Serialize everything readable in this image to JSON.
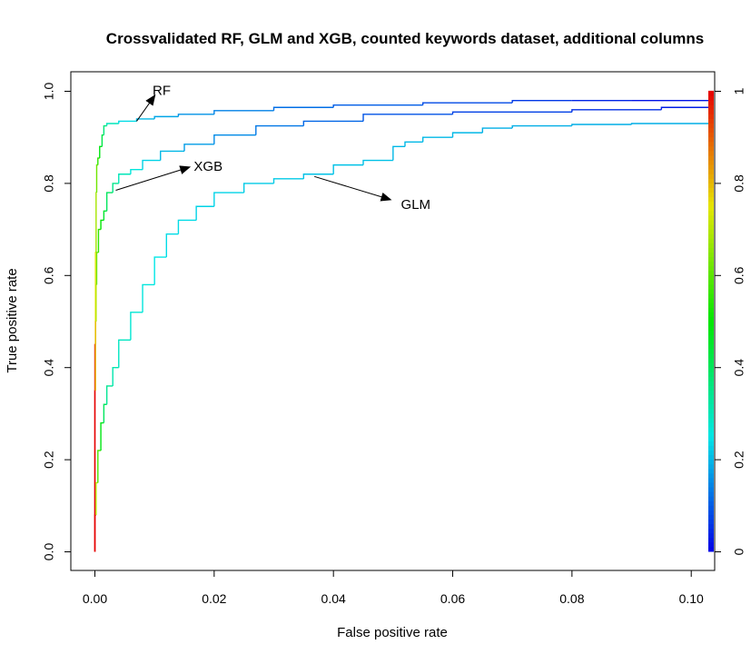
{
  "chart_data": {
    "type": "line",
    "title": "Crossvalidated RF, GLM and XGB, counted keywords dataset, additional columns",
    "xlabel": "False positive rate",
    "ylabel": "True positive rate",
    "xlim": [
      0,
      0.1035
    ],
    "ylim": [
      0,
      1
    ],
    "x_ticks": [
      "0.00",
      "0.02",
      "0.04",
      "0.06",
      "0.08",
      "0.10"
    ],
    "y_ticks": [
      "0.0",
      "0.2",
      "0.4",
      "0.6",
      "0.8",
      "1.0"
    ],
    "grid": false,
    "colorbar": {
      "position": "right",
      "ticks": [
        "0",
        "0.2",
        "0.4",
        "0.6",
        "0.8",
        "1"
      ],
      "palette": "rainbow (blue at 0 to red at 1)"
    },
    "series": [
      {
        "name": "RF",
        "x": [
          0,
          0.0001,
          0.0002,
          0.0003,
          0.0005,
          0.0008,
          0.0012,
          0.0015,
          0.002,
          0.004,
          0.007,
          0.01,
          0.014,
          0.02,
          0.03,
          0.04,
          0.055,
          0.07,
          0.08,
          0.09,
          0.1035
        ],
        "y": [
          0,
          0.45,
          0.65,
          0.78,
          0.84,
          0.855,
          0.88,
          0.905,
          0.925,
          0.93,
          0.935,
          0.94,
          0.945,
          0.95,
          0.958,
          0.965,
          0.97,
          0.975,
          0.98,
          0.98,
          0.98
        ],
        "thresholds": [
          1,
          0.75,
          0.68,
          0.62,
          0.55,
          0.48,
          0.42,
          0.37,
          0.3,
          0.24,
          0.2,
          0.18,
          0.16,
          0.14,
          0.12,
          0.1,
          0.08,
          0.06,
          0.04,
          0.02,
          0.01
        ]
      },
      {
        "name": "XGB",
        "x": [
          0,
          0.0001,
          0.0002,
          0.0003,
          0.0006,
          0.001,
          0.0015,
          0.002,
          0.003,
          0.004,
          0.006,
          0.008,
          0.011,
          0.015,
          0.02,
          0.027,
          0.035,
          0.045,
          0.06,
          0.08,
          0.095,
          0.1035
        ],
        "y": [
          0,
          0.35,
          0.5,
          0.58,
          0.65,
          0.7,
          0.72,
          0.74,
          0.78,
          0.8,
          0.82,
          0.83,
          0.85,
          0.87,
          0.885,
          0.905,
          0.925,
          0.935,
          0.95,
          0.955,
          0.96,
          0.965
        ],
        "thresholds": [
          1,
          0.8,
          0.7,
          0.62,
          0.55,
          0.5,
          0.45,
          0.4,
          0.35,
          0.3,
          0.26,
          0.23,
          0.2,
          0.17,
          0.15,
          0.13,
          0.11,
          0.09,
          0.07,
          0.05,
          0.03,
          0.02
        ]
      },
      {
        "name": "GLM",
        "x": [
          0,
          0.0002,
          0.0005,
          0.001,
          0.0015,
          0.002,
          0.003,
          0.004,
          0.006,
          0.008,
          0.01,
          0.012,
          0.014,
          0.017,
          0.02,
          0.025,
          0.03,
          0.035,
          0.04,
          0.045,
          0.05,
          0.052,
          0.055,
          0.06,
          0.065,
          0.07,
          0.08,
          0.09,
          0.1035
        ],
        "y": [
          0,
          0.08,
          0.15,
          0.22,
          0.28,
          0.32,
          0.36,
          0.4,
          0.46,
          0.52,
          0.58,
          0.64,
          0.69,
          0.72,
          0.75,
          0.78,
          0.8,
          0.81,
          0.82,
          0.84,
          0.85,
          0.88,
          0.89,
          0.9,
          0.91,
          0.92,
          0.925,
          0.928,
          0.93
        ],
        "thresholds": [
          1,
          0.7,
          0.58,
          0.48,
          0.4,
          0.34,
          0.31,
          0.29,
          0.27,
          0.26,
          0.25,
          0.24,
          0.24,
          0.23,
          0.23,
          0.22,
          0.22,
          0.21,
          0.21,
          0.21,
          0.2,
          0.2,
          0.2,
          0.2,
          0.19,
          0.19,
          0.19,
          0.19,
          0.19
        ]
      }
    ],
    "annotations": [
      {
        "label": "RF",
        "text_at": [
          0.0112,
          1.0
        ],
        "arrow_from": [
          0.007,
          0.935
        ],
        "arrow_to": [
          0.01,
          0.99
        ]
      },
      {
        "label": "XGB",
        "text_at": [
          0.019,
          0.835
        ],
        "arrow_from": [
          0.0035,
          0.785
        ],
        "arrow_to": [
          0.0158,
          0.835
        ]
      },
      {
        "label": "GLM",
        "text_at": [
          0.0538,
          0.752
        ],
        "arrow_from": [
          0.0368,
          0.815
        ],
        "arrow_to": [
          0.0495,
          0.765
        ]
      }
    ]
  }
}
